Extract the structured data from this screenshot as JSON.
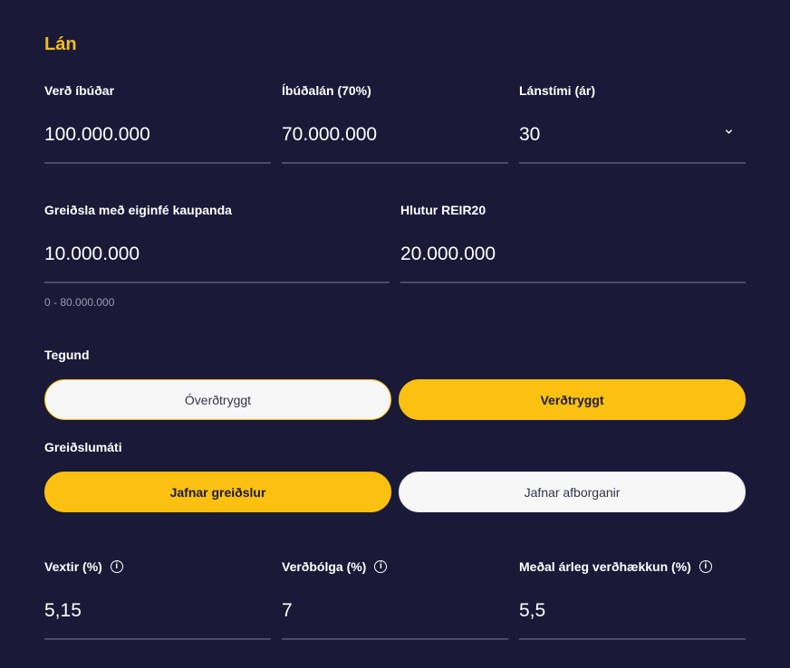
{
  "section_title": "Lán",
  "row1": [
    {
      "label": "Verð íbúðar",
      "value": "100.000.000"
    },
    {
      "label": "Íbúðalán (70%)",
      "value": "70.000.000"
    },
    {
      "label": "Lánstími (ár)",
      "value": "30",
      "icon": "chevron-down-icon"
    }
  ],
  "row2": [
    {
      "label": "Greiðsla með eiginfé kaupanda",
      "value": "10.000.000",
      "hint": "0 - 80.000.000"
    },
    {
      "label": "Hlutur REIR20",
      "value": "20.000.000"
    }
  ],
  "type": {
    "label": "Tegund",
    "options": [
      "Óverðtryggt",
      "Verðtryggt"
    ],
    "selected": "Verðtryggt"
  },
  "payment_method": {
    "label": "Greiðslumáti",
    "options": [
      "Jafnar greiðslur",
      "Jafnar afborganir"
    ],
    "selected": "Jafnar greiðslur"
  },
  "row3": [
    {
      "label": "Vextir (%)",
      "value": "5,15",
      "icon": "info-icon"
    },
    {
      "label": "Verðbólga (%)",
      "value": "7",
      "icon": "info-icon"
    },
    {
      "label": "Meðal árleg verðhækkun (%)",
      "value": "5,5",
      "icon": "info-icon"
    }
  ],
  "colors": {
    "background": "#1a1a38",
    "accent": "#fbc010",
    "input_line": "#4a4b66",
    "button_off": "#f7f7f7"
  }
}
